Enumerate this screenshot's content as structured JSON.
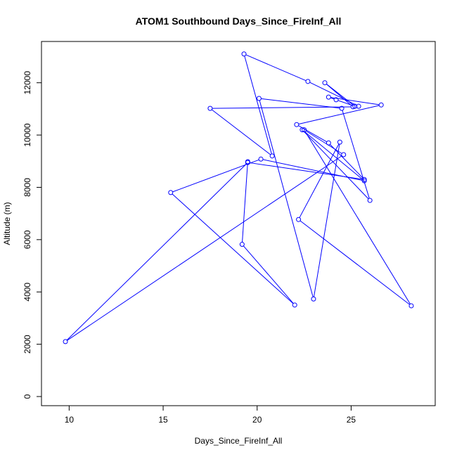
{
  "chart_data": {
    "type": "line",
    "title": "ATOM1 Southbound Days_Since_FireInf_All",
    "xlabel": "Days_Since_FireInf_All",
    "ylabel": "Altitude (m)",
    "xlim": [
      9.5,
      28.5
    ],
    "ylim": [
      0,
      13000
    ],
    "xticks": [
      10,
      15,
      20,
      25
    ],
    "yticks": [
      0,
      2000,
      4000,
      6000,
      8000,
      10000,
      12000
    ],
    "grid": false,
    "line_color": "#0000ff",
    "series": [
      {
        "x": [
          25.4,
          22.7,
          19.3,
          20.8,
          17.5,
          25.1,
          23.6,
          25.2,
          24.2,
          23.8,
          26.6,
          22.1,
          23.8,
          25.7,
          19.5,
          9.8,
          24.6,
          22.5,
          28.2,
          22.2,
          24.4,
          23.0,
          20.1,
          24.5,
          26.0,
          22.4,
          25.7,
          20.2,
          15.4,
          22.0,
          19.2,
          19.5
        ],
        "y": [
          11100,
          12050,
          13100,
          9200,
          11020,
          11080,
          12000,
          11100,
          11350,
          11450,
          11150,
          10400,
          9700,
          8300,
          8950,
          2100,
          9250,
          10200,
          3470,
          6770,
          9730,
          3730,
          11400,
          11020,
          7500,
          10200,
          8250,
          9080,
          7800,
          3500,
          5820,
          8980
        ]
      }
    ]
  }
}
